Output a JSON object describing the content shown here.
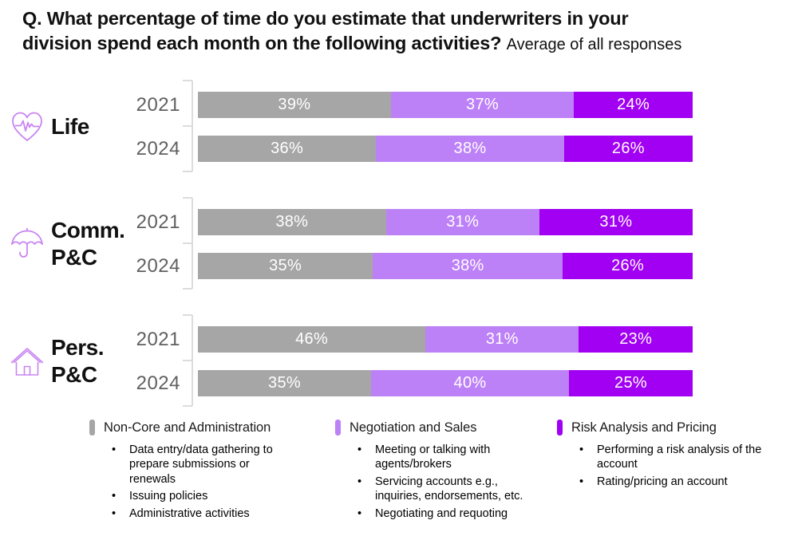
{
  "title": {
    "line1": "Q. What percentage of time do you estimate that underwriters in your",
    "line2": "division spend each month on the following activities?",
    "subtitle": "Average of all responses"
  },
  "colors": {
    "non_core_gray": "#a6a6a6",
    "negotiation_light_purple": "#bd81f7",
    "risk_dark_purple": "#a100f2",
    "axis_line": "#dcdcdc",
    "year_text": "#606060",
    "bar_label_text": "#ffffff",
    "icon_purple": "#c985f2"
  },
  "chart_data": {
    "type": "bar",
    "orientation": "horizontal",
    "stacked": true,
    "unit": "%",
    "series": [
      "Non-Core and Administration",
      "Negotiation and Sales",
      "Risk Analysis and Pricing"
    ],
    "series_colors": [
      "#a6a6a6",
      "#bd81f7",
      "#a100f2"
    ],
    "groups": [
      {
        "label": "Life",
        "label_lines": [
          "Life"
        ],
        "icon": "heart-pulse-icon",
        "bars": [
          {
            "year": "2021",
            "values": [
              39,
              37,
              24
            ],
            "labels": [
              "39%",
              "37%",
              "24%"
            ]
          },
          {
            "year": "2024",
            "values": [
              36,
              38,
              26
            ],
            "labels": [
              "36%",
              "38%",
              "26%"
            ]
          }
        ]
      },
      {
        "label": "Comm. P&C",
        "label_lines": [
          "Comm.",
          "P&C"
        ],
        "icon": "umbrella-icon",
        "bars": [
          {
            "year": "2021",
            "values": [
              38,
              31,
              31
            ],
            "labels": [
              "38%",
              "31%",
              "31%"
            ]
          },
          {
            "year": "2024",
            "values": [
              35,
              38,
              26
            ],
            "labels": [
              "35%",
              "38%",
              "26%"
            ]
          }
        ]
      },
      {
        "label": "Pers. P&C",
        "label_lines": [
          "Pers.",
          "P&C"
        ],
        "icon": "house-icon",
        "bars": [
          {
            "year": "2021",
            "values": [
              46,
              31,
              23
            ],
            "labels": [
              "46%",
              "31%",
              "23%"
            ]
          },
          {
            "year": "2024",
            "values": [
              35,
              40,
              25
            ],
            "labels": [
              "35%",
              "40%",
              "25%"
            ]
          }
        ]
      }
    ]
  },
  "legend": {
    "items": [
      {
        "title": "Non-Core and Administration",
        "color": "#a6a6a6",
        "bullets": [
          "Data entry/data gathering to prepare submissions or renewals",
          "Issuing policies",
          "Administrative activities"
        ]
      },
      {
        "title": "Negotiation and Sales",
        "color": "#bd81f7",
        "bullets": [
          "Meeting or talking with agents/brokers",
          "Servicing accounts e.g., inquiries, endorsements, etc.",
          "Negotiating and requoting"
        ]
      },
      {
        "title": "Risk Analysis and Pricing",
        "color": "#a100f2",
        "bullets": [
          "Performing a risk analysis of the account",
          "Rating/pricing an account"
        ]
      }
    ]
  }
}
